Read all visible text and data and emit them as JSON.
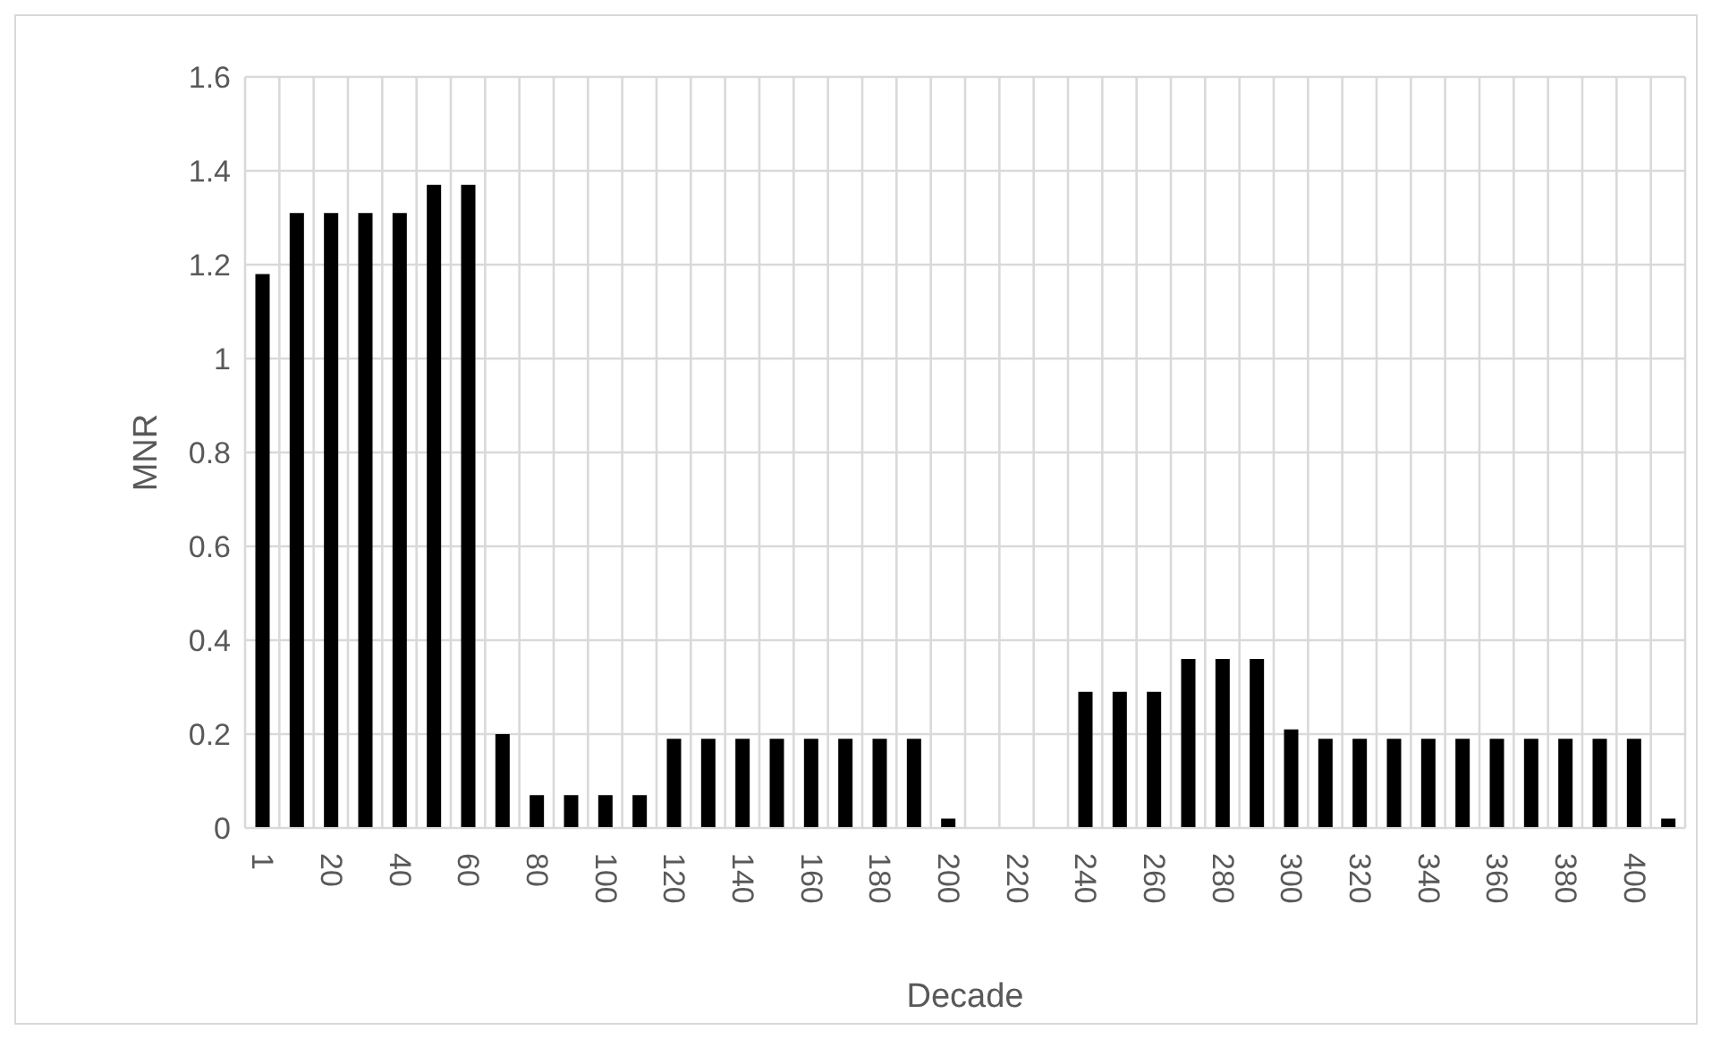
{
  "chart_data": {
    "type": "bar",
    "xlabel": "Decade",
    "ylabel": "MNR",
    "categories": [
      "1",
      null,
      "20",
      null,
      "40",
      null,
      "60",
      null,
      "80",
      null,
      "100",
      null,
      "120",
      null,
      "140",
      null,
      "160",
      null,
      "180",
      null,
      "200",
      null,
      "220",
      null,
      "240",
      null,
      "260",
      null,
      "280",
      null,
      "300",
      null,
      "320",
      null,
      "340",
      null,
      "360",
      null,
      "380",
      null,
      "400",
      null
    ],
    "values": [
      1.18,
      1.31,
      1.31,
      1.31,
      1.31,
      1.37,
      1.37,
      0.2,
      0.07,
      0.07,
      0.07,
      0.07,
      0.19,
      0.19,
      0.19,
      0.19,
      0.19,
      0.19,
      0.19,
      0.19,
      0.02,
      null,
      null,
      null,
      0.29,
      0.29,
      0.29,
      0.36,
      0.36,
      0.36,
      0.21,
      0.19,
      0.19,
      0.19,
      0.19,
      0.19,
      0.19,
      0.19,
      0.19,
      0.19,
      0.19,
      0.02
    ],
    "color": "#000000",
    "ylim": [
      0,
      1.6
    ],
    "yticks": [
      0,
      0.2,
      0.4,
      0.6,
      0.8,
      1,
      1.2,
      1.4,
      1.6
    ],
    "grid": true
  }
}
